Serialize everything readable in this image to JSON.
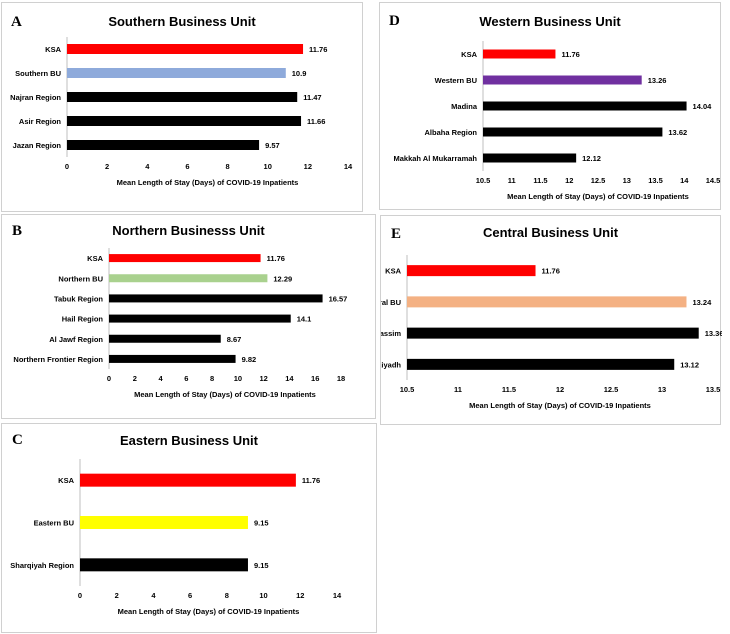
{
  "chart_data": [
    {
      "id": "A",
      "type": "bar",
      "orientation": "horizontal",
      "letter": "A",
      "title": "Southern Business Unit",
      "xlabel": "Mean Length of Stay (Days) of COVID-19 Inpatients",
      "categories": [
        "KSA",
        "Southern BU",
        "Najran Region",
        "Asir Region",
        "Jazan Region"
      ],
      "values": [
        11.76,
        10.9,
        11.47,
        11.66,
        9.57
      ],
      "value_labels": [
        "11.76",
        "10.9",
        "11.47",
        "11.66",
        "9.57"
      ],
      "colors": [
        "#ff0000",
        "#8eaadb",
        "#000000",
        "#000000",
        "#000000"
      ],
      "xlim": [
        0,
        14
      ],
      "ticks": [
        0,
        2,
        4,
        6,
        8,
        10,
        12,
        14
      ],
      "tick_labels": [
        "0",
        "2",
        "4",
        "6",
        "8",
        "10",
        "12",
        "14"
      ],
      "grid": false
    },
    {
      "id": "B",
      "type": "bar",
      "orientation": "horizontal",
      "letter": "B",
      "title": "Northern Businesss Unit",
      "xlabel": "Mean Length of Stay (Days) of COVID-19 Inpatients",
      "categories": [
        "KSA",
        "Northern BU",
        "Tabuk Region",
        "Hail Region",
        "Al Jawf Region",
        "Northern Frontier Region"
      ],
      "values": [
        11.76,
        12.29,
        16.57,
        14.1,
        8.67,
        9.82
      ],
      "value_labels": [
        "11.76",
        "12.29",
        "16.57",
        "14.1",
        "8.67",
        "9.82"
      ],
      "colors": [
        "#ff0000",
        "#a9d18e",
        "#000000",
        "#000000",
        "#000000",
        "#000000"
      ],
      "xlim": [
        0,
        18
      ],
      "ticks": [
        0,
        2,
        4,
        6,
        8,
        10,
        12,
        14,
        16,
        18
      ],
      "tick_labels": [
        "0",
        "2",
        "4",
        "6",
        "8",
        "10",
        "12",
        "14",
        "16",
        "18"
      ],
      "grid": false
    },
    {
      "id": "C",
      "type": "bar",
      "orientation": "horizontal",
      "letter": "C",
      "title": "Eastern Business Unit",
      "xlabel": "Mean Length of Stay (Days) of COVID-19 Inpatients",
      "categories": [
        "KSA",
        "Eastern BU",
        "Sharqiyah Region"
      ],
      "values": [
        11.76,
        9.15,
        9.15
      ],
      "value_labels": [
        "11.76",
        "9.15",
        "9.15"
      ],
      "colors": [
        "#ff0000",
        "#ffff00",
        "#000000"
      ],
      "xlim": [
        0,
        14
      ],
      "ticks": [
        0,
        2,
        4,
        6,
        8,
        10,
        12,
        14
      ],
      "tick_labels": [
        "0",
        "2",
        "4",
        "6",
        "8",
        "10",
        "12",
        "14"
      ],
      "grid": false
    },
    {
      "id": "D",
      "type": "bar",
      "orientation": "horizontal",
      "letter": "D",
      "title": "Western Business Unit",
      "xlabel": "Mean Length of Stay (Days) of COVID-19 Inpatients",
      "categories": [
        "KSA",
        "Western BU",
        "Madina",
        "Albaha Region",
        "Makkah Al Mukarramah"
      ],
      "values": [
        11.76,
        13.26,
        14.04,
        13.62,
        12.12
      ],
      "value_labels": [
        "11.76",
        "13.26",
        "14.04",
        "13.62",
        "12.12"
      ],
      "colors": [
        "#ff0000",
        "#7030a0",
        "#000000",
        "#000000",
        "#000000"
      ],
      "xlim": [
        10.5,
        14.5
      ],
      "ticks": [
        10.5,
        11,
        11.5,
        12,
        12.5,
        13,
        13.5,
        14,
        14.5
      ],
      "tick_labels": [
        "10.5",
        "11",
        "11.5",
        "12",
        "12.5",
        "13",
        "13.5",
        "14",
        "14.5"
      ],
      "grid": false
    },
    {
      "id": "E",
      "type": "bar",
      "orientation": "horizontal",
      "letter": "E",
      "title": "Central Business Unit",
      "xlabel": "Mean Length of Stay (Days) of COVID-19 Inpatients",
      "categories": [
        "KSA",
        "Central BU",
        "Qassim",
        "Riyadh"
      ],
      "values": [
        11.76,
        13.24,
        13.36,
        13.12
      ],
      "value_labels": [
        "11.76",
        "13.24",
        "13.36",
        "13.12"
      ],
      "colors": [
        "#ff0000",
        "#f4b183",
        "#000000",
        "#000000"
      ],
      "xlim": [
        10.5,
        13.5
      ],
      "ticks": [
        10.5,
        11,
        11.5,
        12,
        12.5,
        13,
        13.5
      ],
      "tick_labels": [
        "10.5",
        "11",
        "11.5",
        "12",
        "12.5",
        "13",
        "13.5"
      ],
      "grid": false
    }
  ]
}
